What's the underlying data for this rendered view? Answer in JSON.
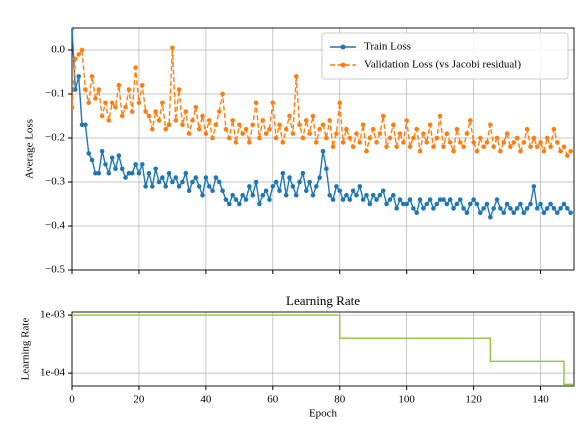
{
  "chart_data": [
    {
      "type": "line",
      "ylabel": "Average Loss",
      "legend": "upper right",
      "grid": true,
      "x": [
        0,
        1,
        2,
        3,
        4,
        5,
        6,
        7,
        8,
        9,
        10,
        11,
        12,
        13,
        14,
        15,
        16,
        17,
        18,
        19,
        20,
        21,
        22,
        23,
        24,
        25,
        26,
        27,
        28,
        29,
        30,
        31,
        32,
        33,
        34,
        35,
        36,
        37,
        38,
        39,
        40,
        41,
        42,
        43,
        44,
        45,
        46,
        47,
        48,
        49,
        50,
        51,
        52,
        53,
        54,
        55,
        56,
        57,
        58,
        59,
        60,
        61,
        62,
        63,
        64,
        65,
        66,
        67,
        68,
        69,
        70,
        71,
        72,
        73,
        74,
        75,
        76,
        77,
        78,
        79,
        80,
        81,
        82,
        83,
        84,
        85,
        86,
        87,
        88,
        89,
        90,
        91,
        92,
        93,
        94,
        95,
        96,
        97,
        98,
        99,
        100,
        101,
        102,
        103,
        104,
        105,
        106,
        107,
        108,
        109,
        110,
        111,
        112,
        113,
        114,
        115,
        116,
        117,
        118,
        119,
        120,
        121,
        122,
        123,
        124,
        125,
        126,
        127,
        128,
        129,
        130,
        131,
        132,
        133,
        134,
        135,
        136,
        137,
        138,
        139,
        140,
        141,
        142,
        143,
        144,
        145,
        146,
        147,
        148,
        149
      ],
      "xlim": [
        0,
        150
      ],
      "xticks": [
        0,
        20,
        40,
        60,
        80,
        100,
        120,
        140
      ],
      "ylim": [
        -0.5,
        0.05
      ],
      "yticks": [
        {
          "value": 0,
          "label": "0.0"
        },
        {
          "value": -0.1,
          "label": "−0.1"
        },
        {
          "value": -0.2,
          "label": "−0.2"
        },
        {
          "value": -0.3,
          "label": "−0.3"
        },
        {
          "value": -0.4,
          "label": "−0.4"
        },
        {
          "value": -0.5,
          "label": "−0.5"
        }
      ],
      "series": [
        {
          "name": "Train Loss",
          "color": "#1f77b4",
          "dash": false,
          "values": [
            0.05,
            -0.09,
            -0.06,
            -0.17,
            -0.17,
            -0.235,
            -0.25,
            -0.28,
            -0.28,
            -0.23,
            -0.26,
            -0.28,
            -0.245,
            -0.27,
            -0.24,
            -0.27,
            -0.29,
            -0.28,
            -0.28,
            -0.26,
            -0.28,
            -0.26,
            -0.31,
            -0.28,
            -0.31,
            -0.27,
            -0.3,
            -0.29,
            -0.31,
            -0.28,
            -0.3,
            -0.29,
            -0.31,
            -0.3,
            -0.28,
            -0.32,
            -0.3,
            -0.29,
            -0.31,
            -0.33,
            -0.29,
            -0.31,
            -0.32,
            -0.29,
            -0.3,
            -0.32,
            -0.34,
            -0.35,
            -0.33,
            -0.34,
            -0.35,
            -0.33,
            -0.34,
            -0.31,
            -0.33,
            -0.3,
            -0.35,
            -0.33,
            -0.32,
            -0.34,
            -0.31,
            -0.3,
            -0.32,
            -0.28,
            -0.33,
            -0.29,
            -0.31,
            -0.33,
            -0.3,
            -0.28,
            -0.32,
            -0.3,
            -0.33,
            -0.31,
            -0.29,
            -0.23,
            -0.27,
            -0.33,
            -0.34,
            -0.31,
            -0.32,
            -0.34,
            -0.33,
            -0.34,
            -0.32,
            -0.33,
            -0.31,
            -0.34,
            -0.33,
            -0.35,
            -0.33,
            -0.34,
            -0.33,
            -0.32,
            -0.35,
            -0.34,
            -0.33,
            -0.36,
            -0.34,
            -0.35,
            -0.35,
            -0.34,
            -0.36,
            -0.37,
            -0.34,
            -0.36,
            -0.35,
            -0.34,
            -0.36,
            -0.35,
            -0.34,
            -0.34,
            -0.35,
            -0.34,
            -0.36,
            -0.35,
            -0.34,
            -0.36,
            -0.37,
            -0.35,
            -0.34,
            -0.35,
            -0.37,
            -0.36,
            -0.35,
            -0.38,
            -0.36,
            -0.34,
            -0.36,
            -0.37,
            -0.35,
            -0.36,
            -0.37,
            -0.36,
            -0.35,
            -0.37,
            -0.36,
            -0.35,
            -0.31,
            -0.36,
            -0.35,
            -0.37,
            -0.36,
            -0.35,
            -0.36,
            -0.37,
            -0.36,
            -0.35,
            -0.36,
            -0.37
          ]
        },
        {
          "name": "Validation Loss (vs Jacobi residual)",
          "color": "#ff7f0e",
          "dash": true,
          "values": [
            -0.13,
            -0.02,
            -0.01,
            0.0,
            -0.09,
            -0.12,
            -0.06,
            -0.11,
            -0.09,
            -0.15,
            -0.12,
            -0.16,
            -0.12,
            -0.13,
            -0.08,
            -0.15,
            -0.13,
            -0.09,
            -0.14,
            -0.04,
            -0.12,
            -0.08,
            -0.14,
            -0.15,
            -0.18,
            -0.14,
            -0.16,
            -0.12,
            -0.18,
            -0.17,
            0.005,
            -0.16,
            -0.09,
            -0.17,
            -0.14,
            -0.19,
            -0.16,
            -0.13,
            -0.18,
            -0.15,
            -0.19,
            -0.16,
            -0.2,
            -0.17,
            -0.14,
            -0.1,
            -0.18,
            -0.2,
            -0.16,
            -0.21,
            -0.17,
            -0.19,
            -0.18,
            -0.21,
            -0.17,
            -0.12,
            -0.2,
            -0.16,
            -0.19,
            -0.18,
            -0.12,
            -0.2,
            -0.17,
            -0.21,
            -0.18,
            -0.15,
            -0.19,
            -0.06,
            -0.17,
            -0.2,
            -0.16,
            -0.19,
            -0.15,
            -0.21,
            -0.18,
            -0.17,
            -0.2,
            -0.16,
            -0.22,
            -0.19,
            -0.12,
            -0.21,
            -0.18,
            -0.2,
            -0.22,
            -0.19,
            -0.21,
            -0.17,
            -0.23,
            -0.2,
            -0.18,
            -0.21,
            -0.19,
            -0.15,
            -0.22,
            -0.2,
            -0.17,
            -0.22,
            -0.19,
            -0.21,
            -0.16,
            -0.22,
            -0.2,
            -0.18,
            -0.23,
            -0.19,
            -0.21,
            -0.17,
            -0.22,
            -0.2,
            -0.15,
            -0.22,
            -0.19,
            -0.21,
            -0.23,
            -0.18,
            -0.21,
            -0.22,
            -0.19,
            -0.16,
            -0.21,
            -0.23,
            -0.2,
            -0.22,
            -0.21,
            -0.17,
            -0.22,
            -0.2,
            -0.23,
            -0.21,
            -0.19,
            -0.22,
            -0.21,
            -0.2,
            -0.23,
            -0.21,
            -0.18,
            -0.22,
            -0.2,
            -0.22,
            -0.21,
            -0.23,
            -0.2,
            -0.22,
            -0.18,
            -0.21,
            -0.23,
            -0.22,
            -0.24,
            -0.23
          ]
        }
      ]
    },
    {
      "type": "line",
      "title": "Learning Rate",
      "ylabel": "Learning Rate",
      "xlabel": "Epoch",
      "log_scale": true,
      "grid": true,
      "x": [
        0,
        80,
        80,
        125,
        125,
        147,
        147,
        150
      ],
      "xlim": [
        0,
        150
      ],
      "xticks": [
        0,
        20,
        40,
        60,
        80,
        100,
        120,
        140
      ],
      "ylim": [
        6e-05,
        0.00113
      ],
      "yticks": [
        {
          "value": 0.001,
          "label": "1e-03"
        },
        {
          "value": 0.0001,
          "label": "1e-04"
        }
      ],
      "series": [
        {
          "color": "#8dc63f",
          "values": [
            0.001,
            0.001,
            0.0004,
            0.0004,
            0.00016,
            0.00016,
            6.4e-05,
            6.4e-05
          ]
        }
      ]
    }
  ]
}
